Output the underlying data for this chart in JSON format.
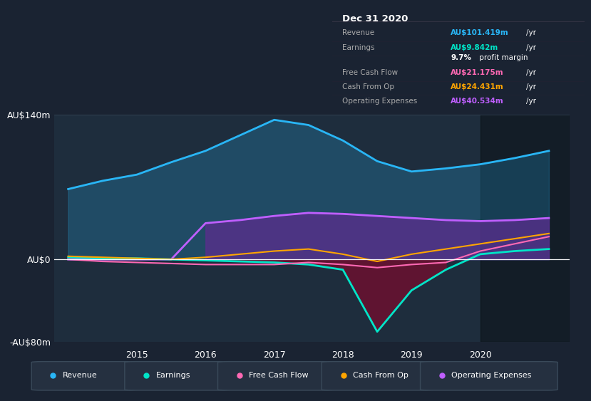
{
  "bg_color": "#1a2332",
  "chart_bg": "#1e2d3d",
  "title": "Dec 31 2020",
  "info_box_bg": "#0a0e17",
  "info_rows": [
    {
      "label": "Revenue",
      "value": "AU$101.419m",
      "color": "#29b6f6"
    },
    {
      "label": "Earnings",
      "value": "AU$9.842m",
      "color": "#00e5c8"
    },
    {
      "label": "",
      "value": "9.7% profit margin",
      "color": "white"
    },
    {
      "label": "Free Cash Flow",
      "value": "AU$21.175m",
      "color": "#ff69b4"
    },
    {
      "label": "Cash From Op",
      "value": "AU$24.431m",
      "color": "#ffa500"
    },
    {
      "label": "Operating Expenses",
      "value": "AU$40.534m",
      "color": "#bf5fff"
    }
  ],
  "years": [
    2014.0,
    2014.5,
    2015.0,
    2015.5,
    2016.0,
    2016.5,
    2017.0,
    2017.5,
    2018.0,
    2018.5,
    2019.0,
    2019.5,
    2020.0,
    2020.5,
    2021.0
  ],
  "revenue": [
    68,
    76,
    82,
    94,
    105,
    120,
    135,
    130,
    115,
    95,
    85,
    88,
    92,
    98,
    105
  ],
  "earnings": [
    2,
    1,
    1,
    0,
    -1,
    -2,
    -3,
    -5,
    -10,
    -70,
    -30,
    -10,
    5,
    8,
    10
  ],
  "free_cash": [
    0,
    -2,
    -3,
    -4,
    -5,
    -5,
    -5,
    -3,
    -5,
    -8,
    -5,
    -3,
    8,
    15,
    22
  ],
  "cash_from_op": [
    3,
    2,
    1,
    0,
    2,
    5,
    8,
    10,
    5,
    -2,
    5,
    10,
    15,
    20,
    25
  ],
  "op_expenses": [
    0,
    0,
    0,
    0,
    35,
    38,
    42,
    45,
    44,
    42,
    40,
    38,
    37,
    38,
    40
  ],
  "ylim": [
    -80,
    140
  ],
  "yticks": [
    -80,
    0,
    140
  ],
  "ytick_labels": [
    "-AU$80m",
    "AU$0",
    "AU$140m"
  ],
  "xticks": [
    2015,
    2016,
    2017,
    2018,
    2019,
    2020
  ],
  "revenue_color": "#29b6f6",
  "earnings_color": "#00e5c8",
  "free_cash_color": "#ff69b4",
  "cash_from_op_color": "#ffa500",
  "op_expenses_color": "#bf5fff",
  "shadow_start_x": 2020.0,
  "legend_items": [
    {
      "label": "Revenue",
      "color": "#29b6f6"
    },
    {
      "label": "Earnings",
      "color": "#00e5c8"
    },
    {
      "label": "Free Cash Flow",
      "color": "#ff69b4"
    },
    {
      "label": "Cash From Op",
      "color": "#ffa500"
    },
    {
      "label": "Operating Expenses",
      "color": "#bf5fff"
    }
  ]
}
